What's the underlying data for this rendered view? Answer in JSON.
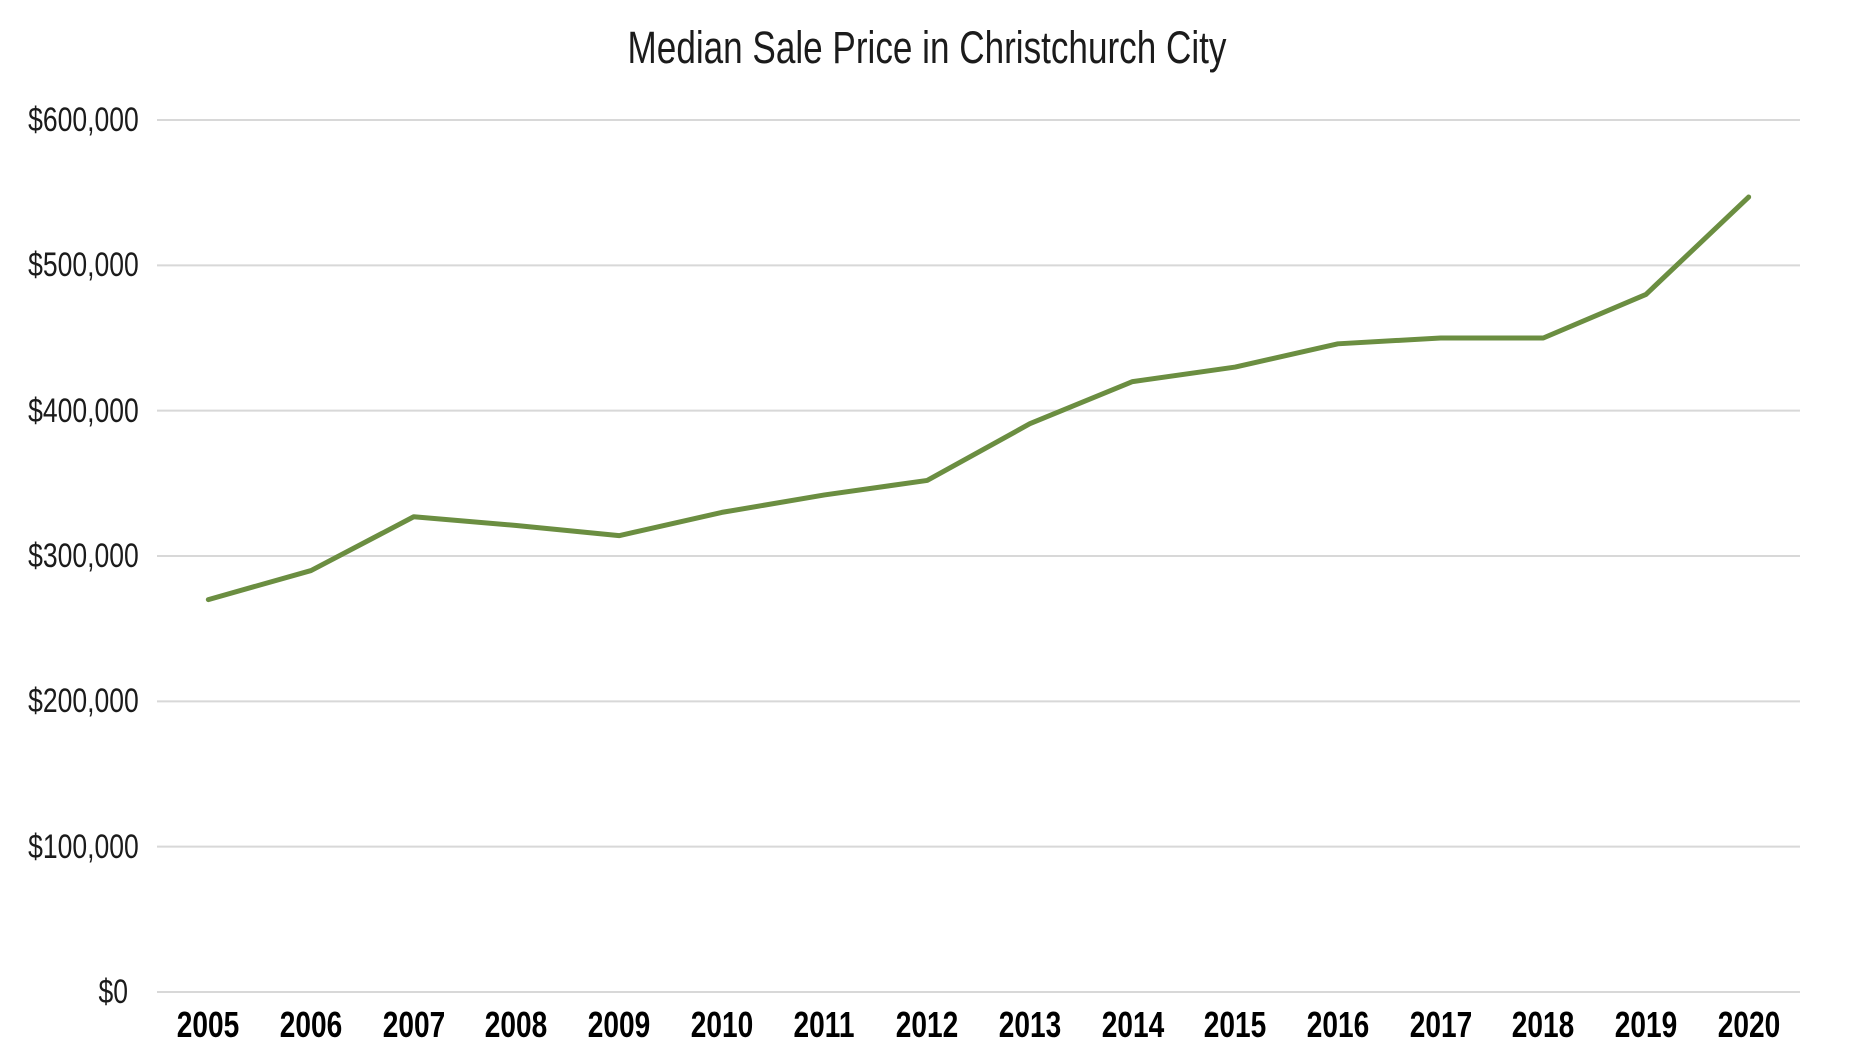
{
  "chart_data": {
    "type": "line",
    "title": "Median Sale Price in Christchurch City",
    "categories": [
      "2005",
      "2006",
      "2007",
      "2008",
      "2009",
      "2010",
      "2011",
      "2012",
      "2013",
      "2014",
      "2015",
      "2016",
      "2017",
      "2018",
      "2019",
      "2020"
    ],
    "values": [
      270000,
      290000,
      327000,
      321000,
      314000,
      330000,
      342000,
      352000,
      391000,
      420000,
      430000,
      446000,
      450000,
      450000,
      480000,
      547000
    ],
    "xlabel": "",
    "ylabel": "",
    "ylim": [
      0,
      600000
    ],
    "yticks": [
      {
        "value": 0,
        "label": "$0"
      },
      {
        "value": 100000,
        "label": "$100,000"
      },
      {
        "value": 200000,
        "label": "$200,000"
      },
      {
        "value": 300000,
        "label": "$300,000"
      },
      {
        "value": 400000,
        "label": "$400,000"
      },
      {
        "value": 500000,
        "label": "$500,000"
      },
      {
        "value": 600000,
        "label": "$600,000"
      }
    ],
    "grid": "horizontal",
    "legend": "none",
    "colors": {
      "line": "#6b8e41",
      "gridline": "#d8d8d8",
      "title_text": "#1b1b1b",
      "axis_text": "#000000",
      "background": "#ffffff"
    }
  }
}
